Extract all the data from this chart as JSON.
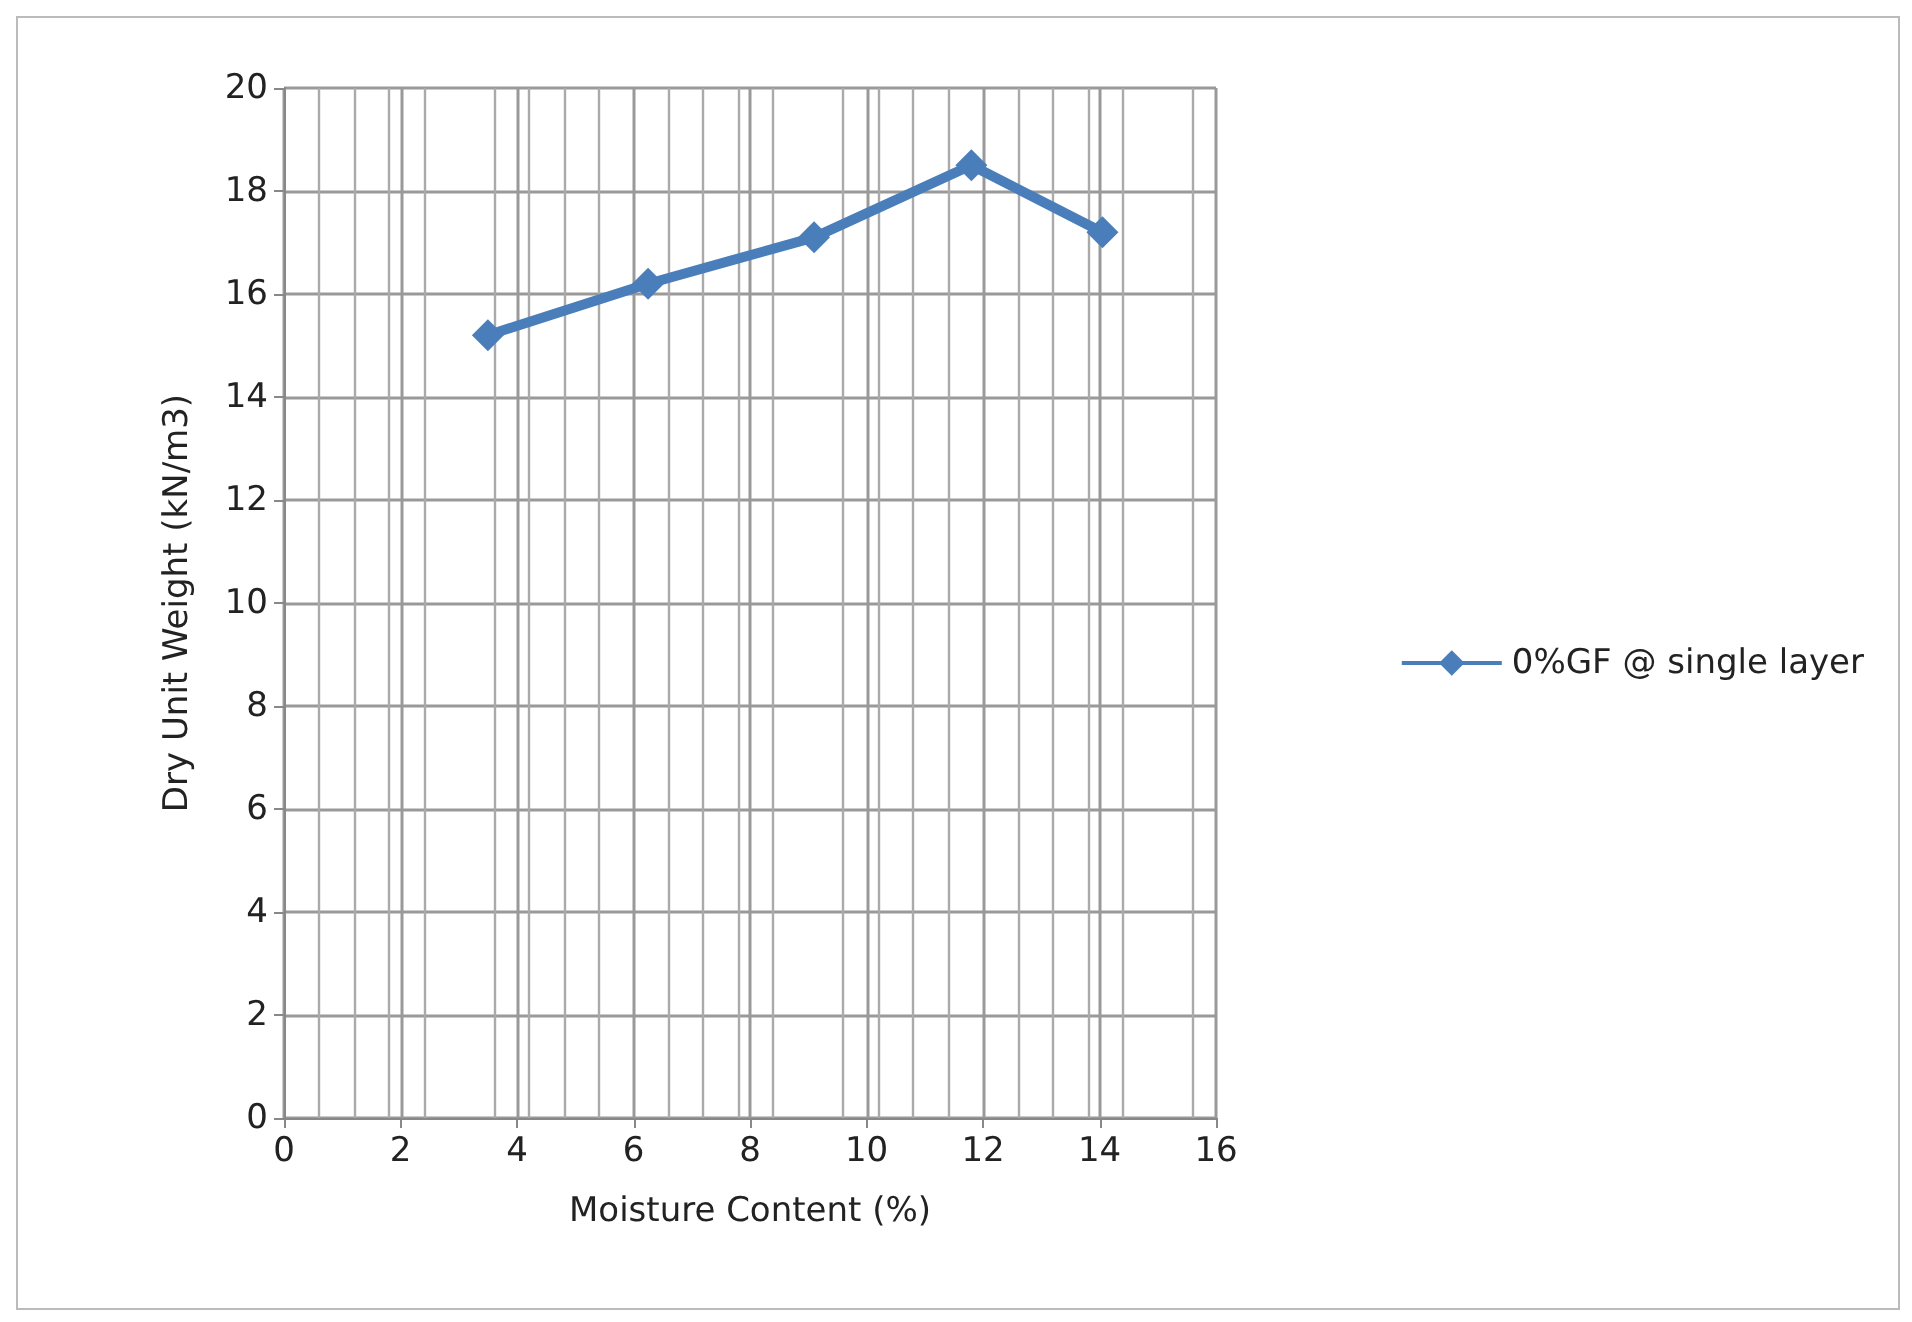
{
  "chart_data": {
    "type": "line",
    "xlabel": "Moisture Content (%)",
    "ylabel": "Dry Unit Weight (kN/m3)",
    "x": [
      3.5,
      6.25,
      9.1,
      11.8,
      14.05
    ],
    "series": [
      {
        "name": "0%GF @ single layer",
        "color": "#4a7ebb",
        "values": [
          15.2,
          16.2,
          17.1,
          18.5,
          17.2
        ]
      }
    ],
    "xlim": [
      0,
      16
    ],
    "xticks": [
      0,
      2,
      4,
      6,
      8,
      10,
      12,
      14,
      16
    ],
    "ylim": [
      0,
      20
    ],
    "yticks": [
      0,
      2,
      4,
      6,
      8,
      10,
      12,
      14,
      16,
      18,
      20
    ],
    "grid": true,
    "legend": "right",
    "marker": "diamond",
    "line_style": "solid"
  }
}
